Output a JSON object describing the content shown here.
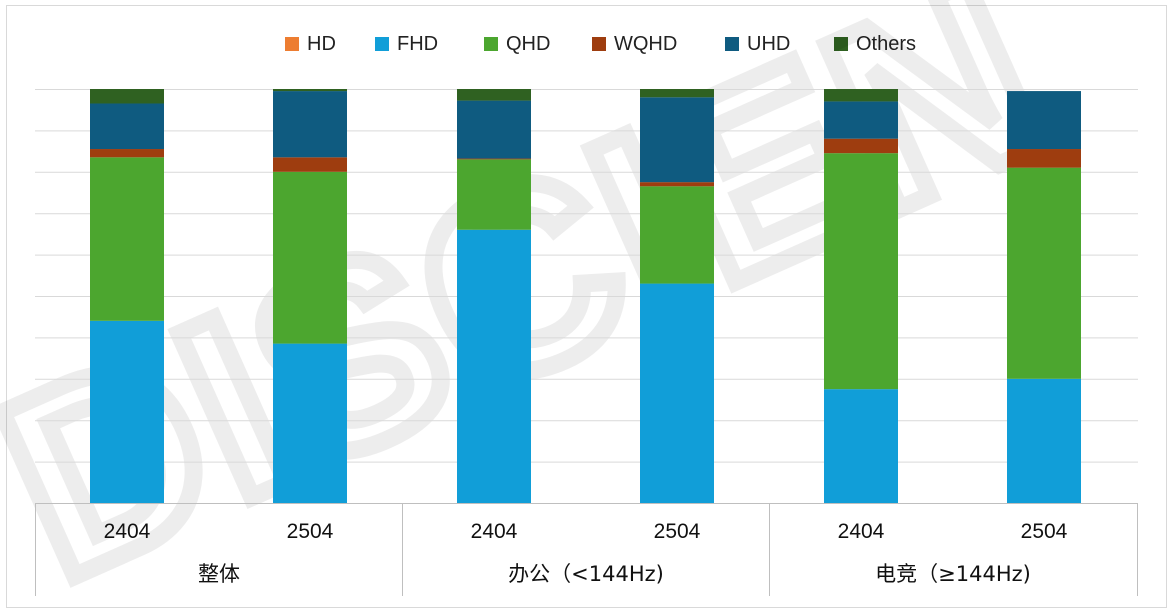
{
  "legend": {
    "items": [
      {
        "label": "HD",
        "color": "#ed7d31"
      },
      {
        "label": "FHD",
        "color": "#119ed8"
      },
      {
        "label": "QHD",
        "color": "#4ca62f"
      },
      {
        "label": "WQHD",
        "color": "#9e3d0f"
      },
      {
        "label": "UHD",
        "color": "#0f5b80"
      },
      {
        "label": "Others",
        "color": "#2f6121"
      }
    ]
  },
  "watermark": {
    "text": "DISCIEN"
  },
  "chart_data": {
    "type": "bar",
    "stacked": true,
    "normalized_100_percent": true,
    "grid": true,
    "legend_position": "top",
    "categories": [
      "2404",
      "2504",
      "2404",
      "2504",
      "2404",
      "2504"
    ],
    "groups": [
      {
        "label": "整体",
        "categories": [
          "2404",
          "2504"
        ]
      },
      {
        "label": "办公（<144Hz)",
        "categories": [
          "2404",
          "2504"
        ]
      },
      {
        "label": "电竞（≥144Hz)",
        "categories": [
          "2404",
          "2504"
        ]
      }
    ],
    "ylim": [
      0,
      100
    ],
    "series": [
      {
        "name": "HD",
        "color": "#ed7d31",
        "values": [
          0,
          0,
          0,
          0,
          0,
          0
        ]
      },
      {
        "name": "FHD",
        "color": "#119ed8",
        "values": [
          44,
          38.5,
          66,
          53,
          27.5,
          30
        ]
      },
      {
        "name": "QHD",
        "color": "#4ca62f",
        "values": [
          39.5,
          41.5,
          17,
          23.5,
          57,
          51
        ]
      },
      {
        "name": "WQHD",
        "color": "#9e3d0f",
        "values": [
          2,
          3.5,
          0.2,
          1,
          3.5,
          4.5
        ]
      },
      {
        "name": "UHD",
        "color": "#0f5b80",
        "values": [
          11,
          16,
          14,
          20.5,
          9,
          14
        ]
      },
      {
        "name": "Others",
        "color": "#2f6121",
        "values": [
          3.5,
          0.5,
          2.8,
          2,
          3,
          0
        ]
      }
    ]
  }
}
